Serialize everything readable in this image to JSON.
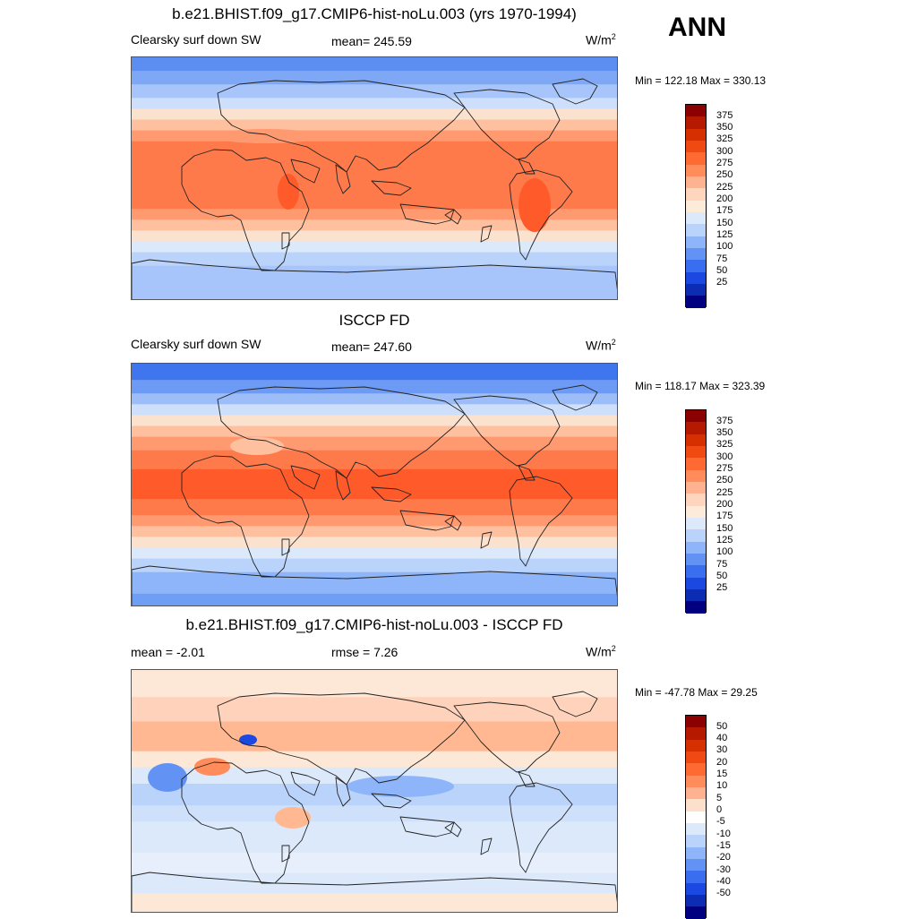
{
  "season": "ANN",
  "panels": [
    {
      "title": "b.e21.BHIST.f09_g17.CMIP6-hist-noLu.003 (yrs 1970-1994)",
      "left_label": "Clearsky surf down SW",
      "center_label": "mean= 245.59",
      "units": "W/m",
      "units_sup": "2",
      "minmax": "Min = 122.18 Max = 330.13",
      "colorbar": {
        "labels": [
          "375",
          "350",
          "325",
          "300",
          "275",
          "250",
          "225",
          "200",
          "175",
          "150",
          "125",
          "100",
          "75",
          "50",
          "25"
        ],
        "colors": [
          "#8b0000",
          "#b51a00",
          "#d73000",
          "#f04a12",
          "#ff6a33",
          "#ff8c5a",
          "#ffb28f",
          "#ffd6bd",
          "#fdebd9",
          "#dce9fb",
          "#b9d3fb",
          "#8eb5f9",
          "#6392f5",
          "#3a6ef0",
          "#1a48e0",
          "#0c2cb4",
          "#000080"
        ]
      },
      "map_style": "model"
    },
    {
      "title": "ISCCP FD",
      "left_label": "Clearsky surf down SW",
      "center_label": "mean= 247.60",
      "units": "W/m",
      "units_sup": "2",
      "minmax": "Min = 118.17 Max = 323.39",
      "colorbar": {
        "labels": [
          "375",
          "350",
          "325",
          "300",
          "275",
          "250",
          "225",
          "200",
          "175",
          "150",
          "125",
          "100",
          "75",
          "50",
          "25"
        ],
        "colors": [
          "#8b0000",
          "#b51a00",
          "#d73000",
          "#f04a12",
          "#ff6a33",
          "#ff8c5a",
          "#ffb28f",
          "#ffd6bd",
          "#fdebd9",
          "#dce9fb",
          "#b9d3fb",
          "#8eb5f9",
          "#6392f5",
          "#3a6ef0",
          "#1a48e0",
          "#0c2cb4",
          "#000080"
        ]
      },
      "map_style": "obs"
    },
    {
      "title": "b.e21.BHIST.f09_g17.CMIP6-hist-noLu.003 - ISCCP FD",
      "left_label": "mean =  -2.01",
      "center_label": "rmse =   7.26",
      "units": "W/m",
      "units_sup": "2",
      "minmax": "Min = -47.78 Max =  29.25",
      "colorbar": {
        "labels": [
          "50",
          "40",
          "30",
          "20",
          "15",
          "10",
          "5",
          "0",
          "-5",
          "-10",
          "-15",
          "-20",
          "-30",
          "-40",
          "-50"
        ],
        "colors": [
          "#8b0000",
          "#b51a00",
          "#d73000",
          "#f04a12",
          "#ff6a33",
          "#ff8c5a",
          "#ffb28f",
          "#fde0cc",
          "#ffffff",
          "#dce9fb",
          "#b9d3fb",
          "#8eb5f9",
          "#6392f5",
          "#3a6ef0",
          "#1a48e0",
          "#0c2cb4",
          "#000080"
        ]
      },
      "map_style": "diff"
    }
  ]
}
